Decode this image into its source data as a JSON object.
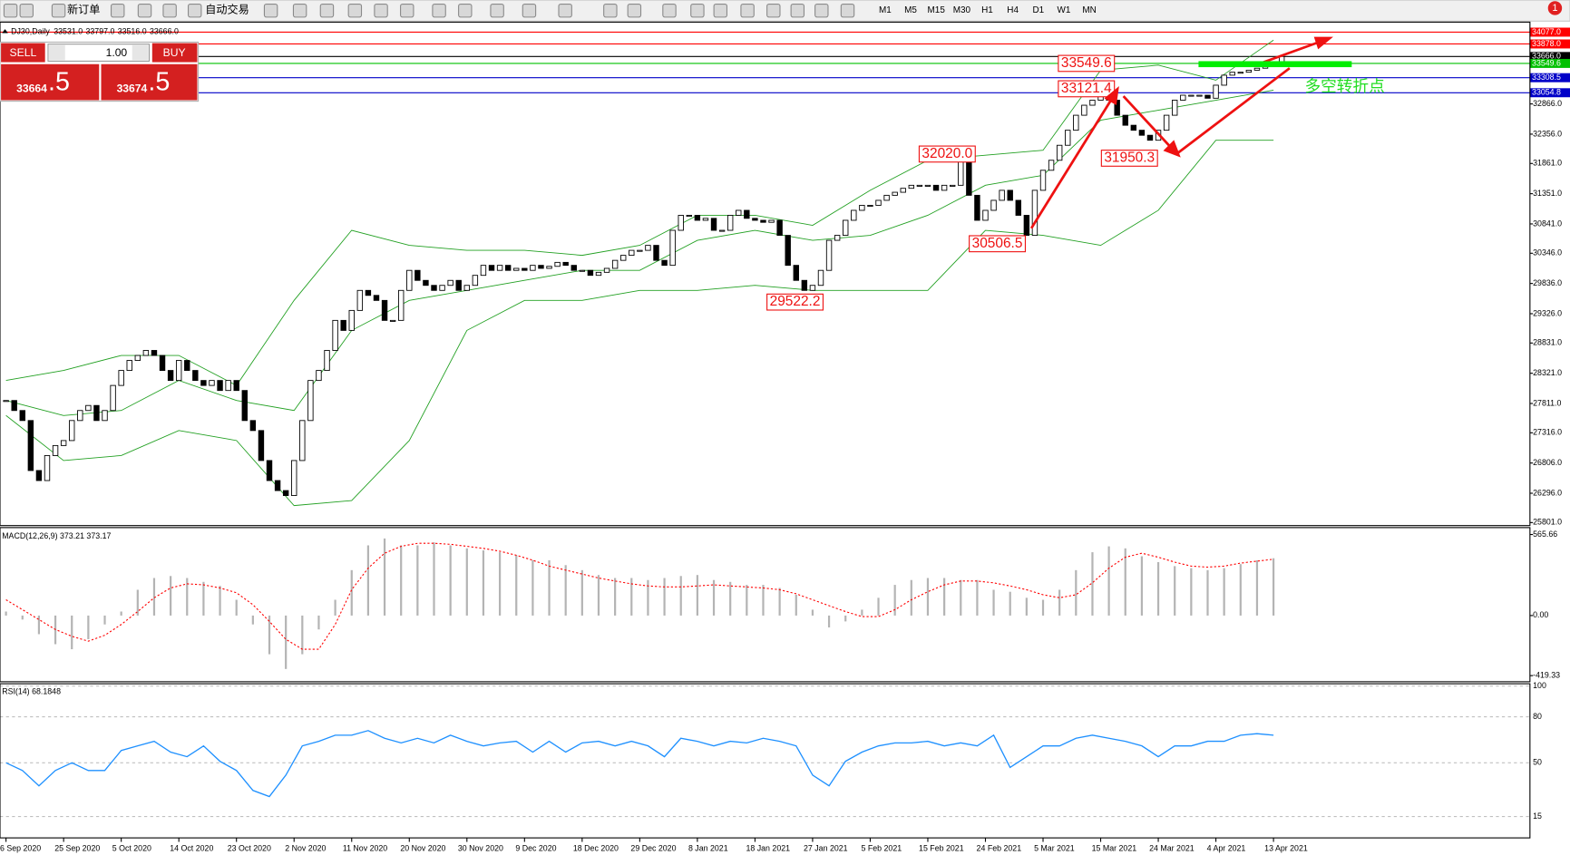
{
  "toolbar": {
    "new_order": "新订单",
    "auto_trading": "自动交易",
    "timeframes": [
      "M1",
      "M5",
      "M15",
      "M30",
      "H1",
      "H4",
      "D1",
      "W1",
      "MN"
    ],
    "notifications": "1"
  },
  "symbol_info": {
    "symbol": "DJ30,Daily",
    "ohlc": [
      "33531.0",
      "33797.0",
      "33516.0",
      "33666.0"
    ]
  },
  "trade_panel": {
    "sell": "SELL",
    "buy": "BUY",
    "lots": "1.00",
    "bid": "33664",
    "bid_tail": ".5",
    "ask": "33674",
    "ask_tail": ".5"
  },
  "time_axis": [
    "6 Sep 2020",
    "25 Sep 2020",
    "5 Oct 2020",
    "14 Oct 2020",
    "23 Oct 2020",
    "2 Nov 2020",
    "11 Nov 2020",
    "20 Nov 2020",
    "30 Nov 2020",
    "9 Dec 2020",
    "18 Dec 2020",
    "29 Dec 2020",
    "8 Jan 2021",
    "18 Jan 2021",
    "27 Jan 2021",
    "5 Feb 2021",
    "15 Feb 2021",
    "24 Feb 2021",
    "5 Mar 2021",
    "15 Mar 2021",
    "24 Mar 2021",
    "4 Apr 2021",
    "13 Apr 2021"
  ],
  "chart_data": [
    {
      "type": "candlestick",
      "color": "#000000",
      "ylim": [
        25750,
        34145
      ],
      "yticks": [
        {
          "value": 32866,
          "label": "32866.0"
        },
        {
          "value": 32356,
          "label": "32356.0"
        },
        {
          "value": 31861,
          "label": "31861.0"
        },
        {
          "value": 31351,
          "label": "31351.0"
        },
        {
          "value": 30841,
          "label": "30841.0"
        },
        {
          "value": 30346,
          "label": "30346.0"
        },
        {
          "value": 29836,
          "label": "29836.0"
        },
        {
          "value": 29326,
          "label": "29326.0"
        },
        {
          "value": 28831,
          "label": "28831.0"
        },
        {
          "value": 28321,
          "label": "28321.0"
        },
        {
          "value": 27811,
          "label": "27811.0"
        },
        {
          "value": 27316,
          "label": "27316.0"
        },
        {
          "value": 26806,
          "label": "26806.0"
        },
        {
          "value": 26296,
          "label": "26296.0"
        },
        {
          "value": 25801,
          "label": "25801.0"
        }
      ],
      "levels": [
        {
          "value": 34077,
          "label": "34077.0",
          "color": "#ff0000"
        },
        {
          "value": 33878,
          "label": "33878.0",
          "color": "#ff0000"
        },
        {
          "value": 33666,
          "label": "33666.0",
          "color": "#000000"
        },
        {
          "value": 33549.6,
          "label": "33549.6",
          "color": "#00c000"
        },
        {
          "value": 33308.5,
          "label": "33308.5",
          "color": "#0000c8"
        },
        {
          "value": 33054.8,
          "label": "33054.8",
          "color": "#0000c8"
        }
      ],
      "annotations": [
        {
          "value": 33549.6,
          "label": "33549.6"
        },
        {
          "value": 33121.4,
          "label": "33121.4"
        },
        {
          "value": 32020.0,
          "label": "32020.0"
        },
        {
          "value": 31950.3,
          "label": "31950.3"
        },
        {
          "value": 30506.5,
          "label": "30506.5"
        },
        {
          "value": 29522.2,
          "label": "29522.2"
        }
      ],
      "annotation_text": "多空转折点",
      "bands": [
        {
          "color": "#22a022",
          "values": [
            28199,
            28368,
            28621,
            28621,
            28115,
            29550,
            30733,
            30479,
            30395,
            30395,
            30311,
            30479,
            30986,
            30986,
            30817,
            31408,
            31915,
            31999,
            32084,
            33435,
            33520,
            33266,
            33942
          ]
        },
        {
          "color": "#22a022",
          "values": [
            27861,
            27608,
            27692,
            28199,
            27861,
            27692,
            29044,
            29550,
            29719,
            29888,
            30057,
            30057,
            30564,
            30733,
            30564,
            30648,
            30986,
            31493,
            31662,
            32591,
            32760,
            32929,
            33098
          ]
        },
        {
          "color": "#22a022",
          "values": [
            27608,
            26848,
            26932,
            27354,
            27185,
            26088,
            26172,
            27185,
            29044,
            29550,
            29550,
            29719,
            29719,
            29804,
            29719,
            29719,
            29719,
            30733,
            30648,
            30479,
            31070,
            32253,
            32253
          ]
        }
      ],
      "values": [
        27861,
        27692,
        27523,
        26679,
        26510,
        26932,
        27101,
        27185,
        27523,
        27692,
        27777,
        27523,
        27692,
        28115,
        28368,
        28537,
        28621,
        28706,
        28621,
        28368,
        28199,
        28537,
        28368,
        28199,
        28115,
        28199,
        28030,
        28199,
        28030,
        27523,
        27354,
        26848,
        26510,
        26341,
        26257,
        26848,
        27523,
        28199,
        28368,
        28706,
        29213,
        29044,
        29381,
        29719,
        29635,
        29550,
        29213,
        29213,
        29719,
        30057,
        29888,
        29804,
        29719,
        29804,
        29888,
        29719,
        29804,
        29973,
        30142,
        30057,
        30142,
        30057,
        30091,
        30057,
        30142,
        30091,
        30125,
        30192,
        30142,
        30057,
        30057,
        29973,
        30024,
        30091,
        30226,
        30311,
        30395,
        30395,
        30479,
        30226,
        30142,
        30733,
        30986,
        30986,
        30902,
        30935,
        30733,
        30733,
        30986,
        31070,
        30935,
        30902,
        30868,
        30902,
        30648,
        30142,
        29888,
        29719,
        29804,
        30057,
        30564,
        30648,
        30902,
        31070,
        31155,
        31155,
        31239,
        31324,
        31375,
        31442,
        31493,
        31493,
        31493,
        31408,
        31493,
        31493,
        31915,
        31324,
        30902,
        31070,
        31239,
        31408,
        31239,
        30986,
        30648,
        31408,
        31746,
        31915,
        32168,
        32422,
        32675,
        32844,
        32929,
        33013,
        32929,
        32675,
        32506,
        32422,
        32337,
        32253,
        32422,
        32675,
        32929,
        33013,
        33013,
        33013,
        32962,
        33182,
        33351,
        33401,
        33401,
        33435,
        33469,
        33520,
        33553,
        33666
      ]
    },
    {
      "type": "macd",
      "title": "MACD(12,26,9) 373.21 373.17",
      "ylim": [
        -455,
        607
      ],
      "yticks": [
        {
          "value": 565.66,
          "label": "565.66"
        },
        {
          "value": 0,
          "label": "0.00"
        },
        {
          "value": -419.33,
          "label": "-419.33"
        }
      ],
      "series": [
        {
          "color": "#b4b4b4",
          "values": [
            28,
            -28,
            -130,
            -200,
            -235,
            -165,
            -62,
            28,
            180,
            262,
            276,
            262,
            235,
            207,
            110,
            -62,
            -270,
            -373,
            -270,
            -97,
            110,
            317,
            490,
            538,
            490,
            490,
            511,
            490,
            469,
            455,
            442,
            421,
            386,
            386,
            352,
            317,
            283,
            262,
            262,
            248,
            262,
            276,
            283,
            248,
            235,
            214,
            214,
            193,
            145,
            41,
            -83,
            -41,
            41,
            124,
            214,
            248,
            262,
            262,
            248,
            248,
            180,
            166,
            124,
            110,
            180,
            317,
            442,
            483,
            469,
            414,
            373,
            345,
            331,
            317,
            331,
            359,
            386,
            400
          ]
        },
        {
          "color": "#ff0000",
          "values": [
            110,
            41,
            -28,
            -97,
            -145,
            -179,
            -138,
            -62,
            28,
            124,
            193,
            221,
            214,
            193,
            159,
            76,
            -41,
            -166,
            -235,
            -235,
            -62,
            180,
            331,
            435,
            483,
            504,
            504,
            497,
            483,
            469,
            449,
            421,
            386,
            345,
            317,
            290,
            262,
            241,
            221,
            207,
            200,
            200,
            207,
            214,
            207,
            200,
            193,
            180,
            152,
            110,
            69,
            28,
            -7,
            -7,
            41,
            110,
            166,
            214,
            241,
            241,
            228,
            207,
            180,
            145,
            124,
            145,
            228,
            331,
            407,
            435,
            407,
            373,
            345,
            338,
            345,
            366,
            380,
            393
          ]
        }
      ]
    },
    {
      "type": "line",
      "title": "RSI(14) 68.1848",
      "ylim": [
        1.7,
        100.9
      ],
      "yticks": [
        100,
        80,
        50,
        15
      ],
      "grid": true,
      "series": [
        {
          "color": "#1e90ff",
          "values": [
            50,
            45,
            35,
            45,
            50,
            45,
            45,
            58,
            61,
            64,
            57,
            54,
            61,
            51,
            45,
            32,
            28,
            42,
            61,
            64,
            68,
            68,
            71,
            66,
            63,
            66,
            63,
            68,
            64,
            61,
            63,
            64,
            57,
            64,
            57,
            63,
            64,
            61,
            64,
            61,
            54,
            66,
            64,
            61,
            64,
            63,
            66,
            64,
            61,
            42,
            35,
            51,
            57,
            61,
            63,
            63,
            64,
            61,
            63,
            61,
            68,
            47,
            54,
            61,
            61,
            66,
            68,
            66,
            64,
            61,
            54,
            61,
            61,
            64,
            64,
            68,
            69,
            68
          ]
        }
      ]
    }
  ]
}
